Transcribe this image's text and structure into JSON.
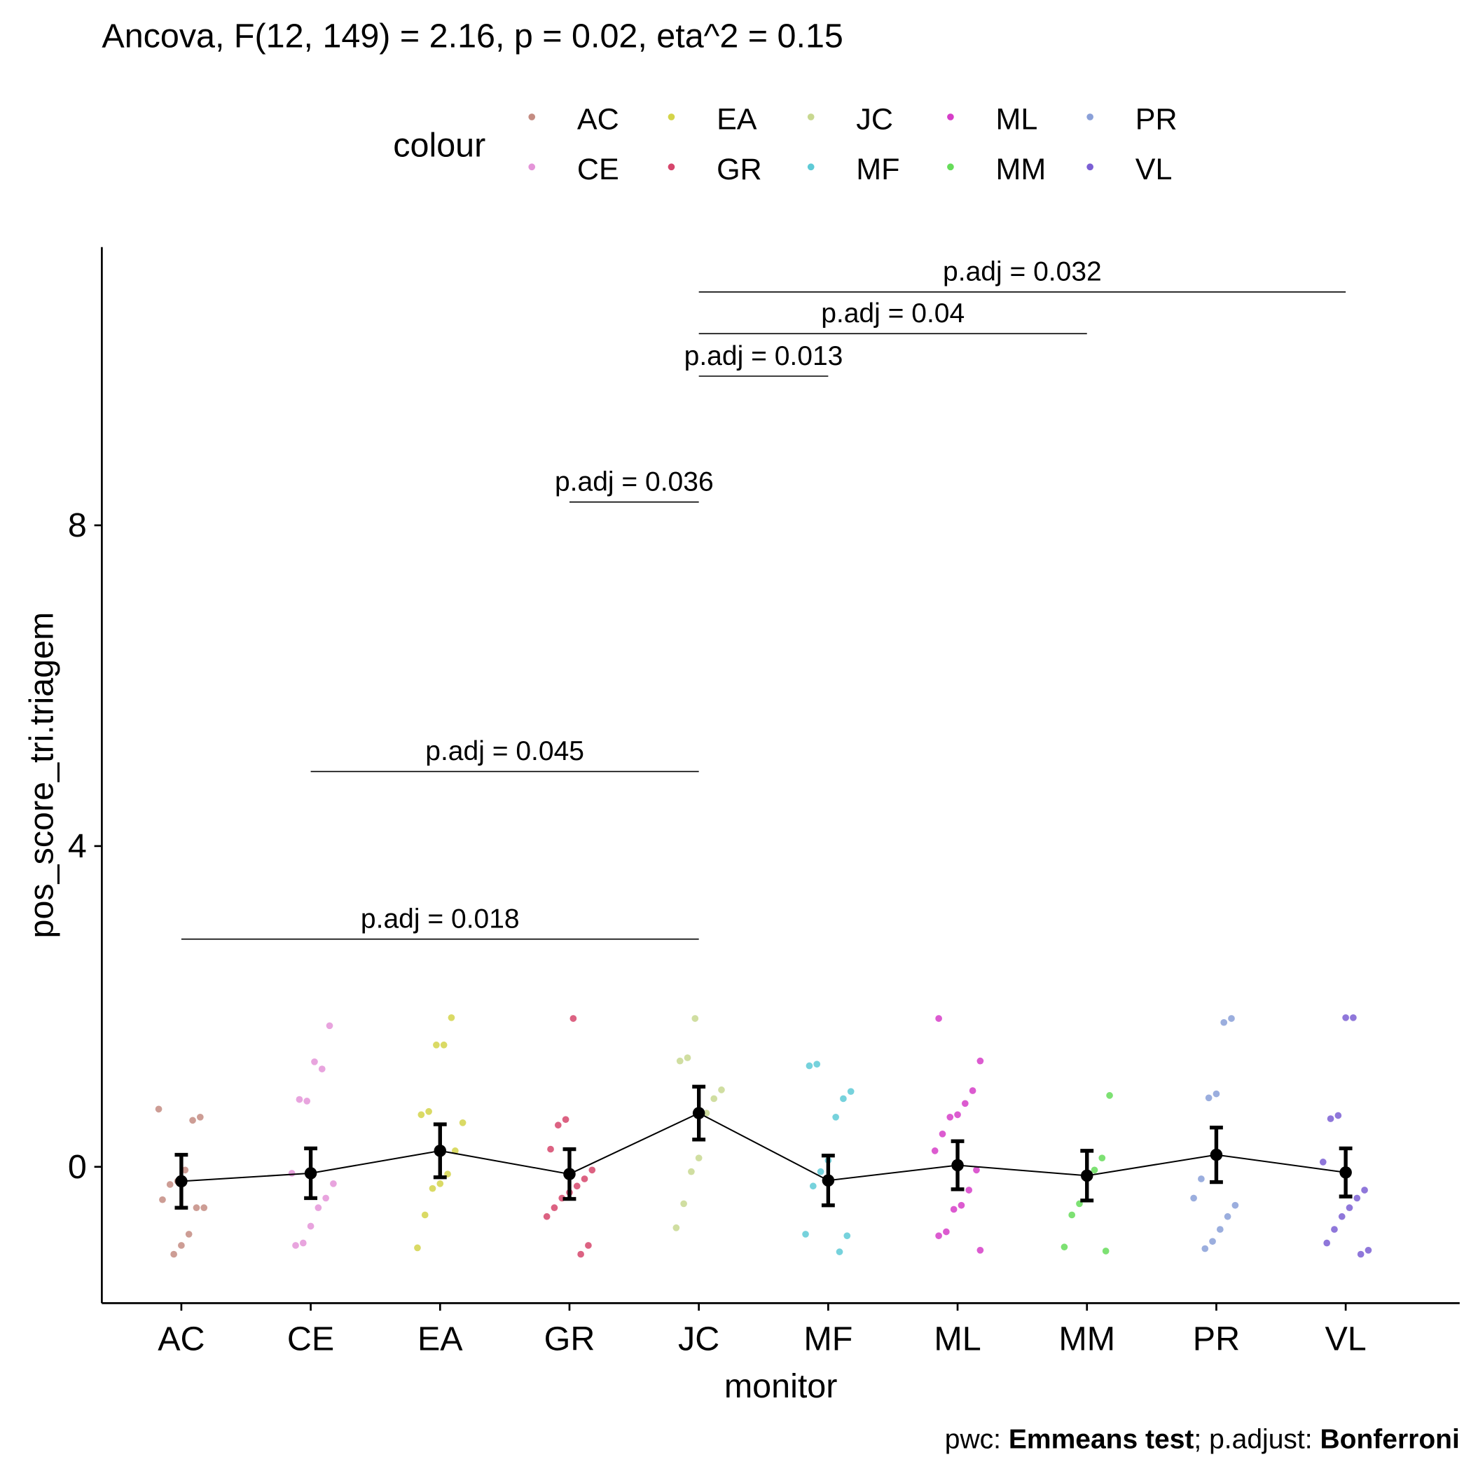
{
  "chart_data": {
    "type": "dotplot",
    "title": "Ancova, F(12, 149) = 2.16, p = 0.02, eta^2 = 0.15",
    "xlabel": "monitor",
    "ylabel": "pos_score_tri.triagem",
    "legend_title": "colour",
    "categories": [
      "AC",
      "CE",
      "EA",
      "GR",
      "JC",
      "MF",
      "ML",
      "MM",
      "PR",
      "VL"
    ],
    "colors": [
      "#c48c82",
      "#e494d8",
      "#d4d44a",
      "#d6466c",
      "#c8d890",
      "#5ecad6",
      "#d63ec8",
      "#66dc5a",
      "#8aa0d8",
      "#7b5fd4"
    ],
    "points": [
      [
        0.72,
        0.62,
        0.58,
        -0.04,
        -0.18,
        -0.22,
        -0.41,
        -0.51,
        -0.51,
        -0.84,
        -0.98,
        -1.09
      ],
      [
        1.76,
        1.22,
        1.31,
        0.82,
        0.84,
        -0.08,
        -0.21,
        -0.39,
        -0.51,
        -0.74,
        -0.95,
        -0.98
      ],
      [
        1.86,
        1.52,
        1.52,
        0.69,
        0.65,
        0.55,
        0.2,
        -0.09,
        -0.21,
        -0.27,
        -0.6,
        -1.01
      ],
      [
        1.85,
        0.59,
        0.52,
        0.22,
        -0.04,
        -0.15,
        -0.24,
        -0.32,
        -0.39,
        -0.51,
        -0.62,
        -0.98,
        -1.09
      ],
      [
        1.85,
        1.36,
        1.32,
        0.96,
        0.85,
        0.67,
        0.11,
        -0.06,
        -0.46,
        -0.76
      ],
      [
        1.28,
        1.26,
        0.94,
        0.85,
        0.62,
        0.08,
        -0.06,
        -0.24,
        -0.84,
        -0.86,
        -1.06
      ],
      [
        1.85,
        1.32,
        0.95,
        0.79,
        0.65,
        0.62,
        0.41,
        0.2,
        -0.04,
        -0.29,
        -0.48,
        -0.53,
        -0.81,
        -0.86,
        -1.04
      ],
      [
        0.89,
        0.11,
        -0.04,
        -0.15,
        -0.46,
        -0.6,
        -1.0,
        -1.05
      ],
      [
        1.85,
        1.8,
        0.91,
        0.86,
        -0.15,
        -0.39,
        -0.48,
        -0.62,
        -0.78,
        -0.93,
        -1.02
      ],
      [
        1.86,
        1.86,
        0.64,
        0.6,
        0.06,
        -0.29,
        -0.39,
        -0.51,
        -0.62,
        -0.78,
        -0.95,
        -1.04,
        -1.09
      ]
    ],
    "means": [
      -0.18,
      -0.08,
      0.2,
      -0.09,
      0.67,
      -0.17,
      0.02,
      -0.11,
      0.15,
      -0.07
    ],
    "errors": [
      0.33,
      0.31,
      0.33,
      0.31,
      0.33,
      0.31,
      0.3,
      0.31,
      0.34,
      0.3
    ],
    "ylim": [
      -1.7,
      11.47
    ],
    "yticks": [
      0,
      4,
      8
    ],
    "comparisons": [
      {
        "group1": "AC",
        "group2": "JC",
        "y": 2.84,
        "label": "p.adj = 0.018"
      },
      {
        "group1": "CE",
        "group2": "JC",
        "y": 4.93,
        "label": "p.adj = 0.045"
      },
      {
        "group1": "GR",
        "group2": "JC",
        "y": 8.29,
        "label": "p.adj = 0.036"
      },
      {
        "group1": "JC",
        "group2": "MF",
        "y": 9.86,
        "label": "p.adj = 0.013"
      },
      {
        "group1": "JC",
        "group2": "MM",
        "y": 10.39,
        "label": "p.adj = 0.04"
      },
      {
        "group1": "JC",
        "group2": "VL",
        "y": 10.91,
        "label": "p.adj = 0.032"
      }
    ],
    "caption": [
      "pwc: ",
      "Emmeans test",
      "; p.adjust: ",
      "Bonferroni"
    ]
  }
}
